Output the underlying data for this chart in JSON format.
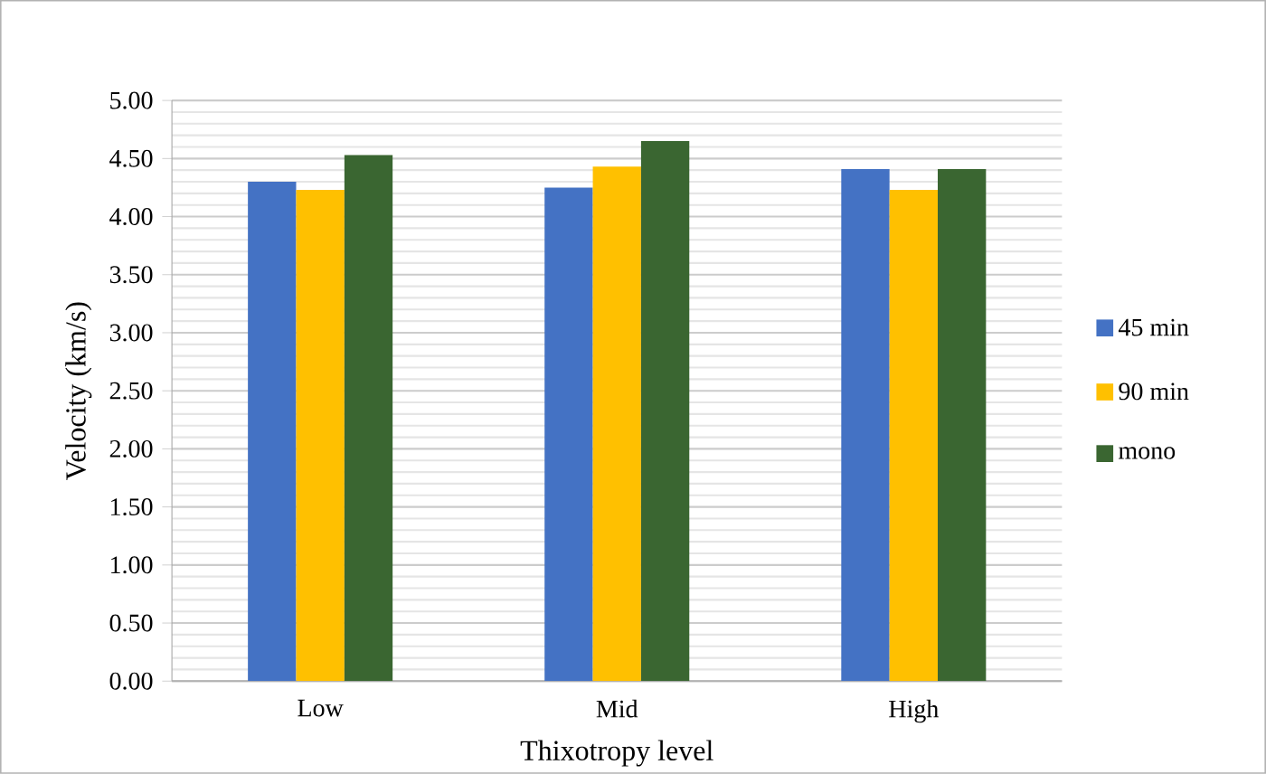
{
  "chart_data": {
    "type": "bar",
    "xlabel": "Thixotropy level",
    "ylabel": "Velocity (km/s)",
    "categories": [
      "Low",
      "Mid",
      "High"
    ],
    "series": [
      {
        "name": "45 min",
        "color": "#4472c4",
        "values": [
          4.3,
          4.25,
          4.41
        ]
      },
      {
        "name": "90 min",
        "color": "#ffc000",
        "values": [
          4.23,
          4.43,
          4.23
        ]
      },
      {
        "name": "mono",
        "color": "#3a6631",
        "values": [
          4.53,
          4.65,
          4.41
        ]
      }
    ],
    "ylim": [
      0,
      5
    ],
    "yticks": [
      {
        "value": 0,
        "label": "0.00"
      },
      {
        "value": 0.5,
        "label": "0.50"
      },
      {
        "value": 1,
        "label": "1.00"
      },
      {
        "value": 1.5,
        "label": "1.50"
      },
      {
        "value": 2,
        "label": "2.00"
      },
      {
        "value": 2.5,
        "label": "2.50"
      },
      {
        "value": 3,
        "label": "3.00"
      },
      {
        "value": 3.5,
        "label": "3.50"
      },
      {
        "value": 4,
        "label": "4.00"
      },
      {
        "value": 4.5,
        "label": "4.50"
      },
      {
        "value": 5,
        "label": "5.00"
      }
    ],
    "grid": "y",
    "legend": "right"
  }
}
